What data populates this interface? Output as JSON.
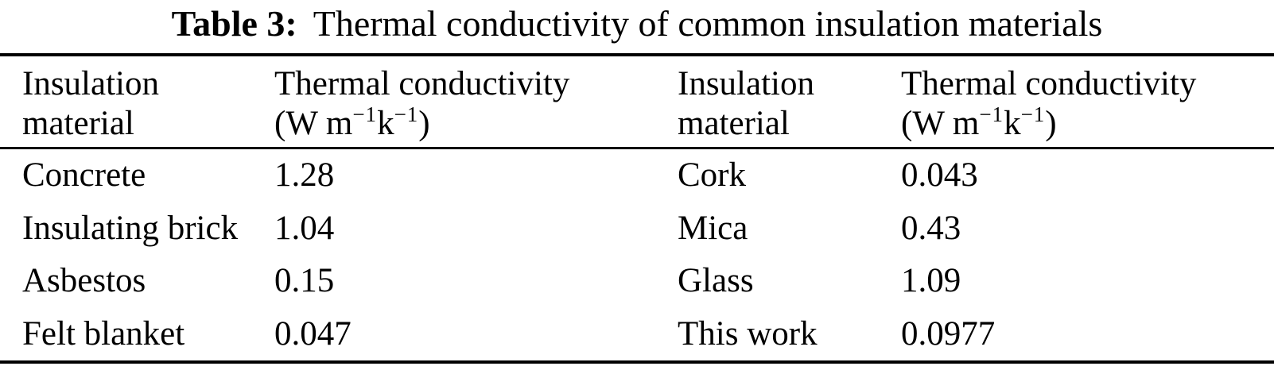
{
  "caption": {
    "label": "Table 3:",
    "text": "Thermal conductivity of common insulation materials"
  },
  "header": {
    "material_line1": "Insulation",
    "material_line2": "material",
    "conductivity_line1": "Thermal conductivity",
    "unit_prefix": "(W m",
    "unit_sup": "−1",
    "unit_mid": "k",
    "unit_suffix": ")"
  },
  "rows": [
    {
      "material_left": "Concrete",
      "value_left": "1.28",
      "material_right": "Cork",
      "value_right": "0.043"
    },
    {
      "material_left": "Insulating brick",
      "value_left": "1.04",
      "material_right": "Mica",
      "value_right": "0.43"
    },
    {
      "material_left": "Asbestos",
      "value_left": "0.15",
      "material_right": "Glass",
      "value_right": "1.09"
    },
    {
      "material_left": "Felt blanket",
      "value_left": "0.047",
      "material_right": "This work",
      "value_right": "0.0977"
    }
  ],
  "colors": {
    "text": "#000000",
    "background": "#ffffff",
    "rule": "#000000"
  },
  "chart_data": {
    "type": "table",
    "title": "Table 3: Thermal conductivity of common insulation materials",
    "columns": [
      "Insulation material",
      "Thermal conductivity (W m−1k−1)",
      "Insulation material",
      "Thermal conductivity (W m−1k−1)"
    ],
    "rows": [
      [
        "Concrete",
        "1.28",
        "Cork",
        "0.043"
      ],
      [
        "Insulating brick",
        "1.04",
        "Mica",
        "0.43"
      ],
      [
        "Asbestos",
        "0.15",
        "Glass",
        "1.09"
      ],
      [
        "Felt blanket",
        "0.047",
        "This work",
        "0.0977"
      ]
    ]
  }
}
